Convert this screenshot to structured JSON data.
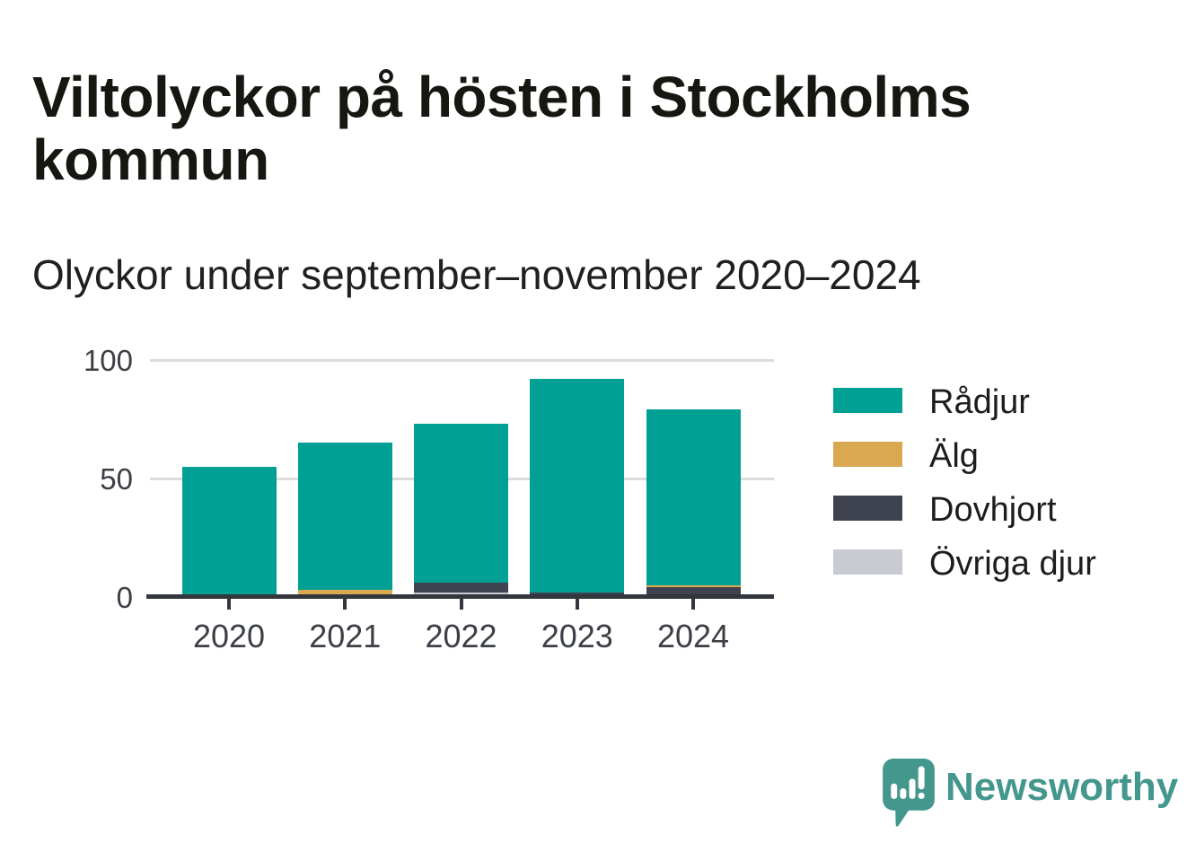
{
  "page": {
    "title": "Viltolyckor på hösten i Stockholms kommun",
    "subtitle": "Olyckor under september–november 2020–2024",
    "background_color": "#ffffff"
  },
  "chart_data": {
    "type": "bar",
    "stacked": true,
    "title": "Viltolyckor på hösten i Stockholms kommun",
    "subtitle": "Olyckor under september–november 2020–2024",
    "categories": [
      "2020",
      "2021",
      "2022",
      "2023",
      "2024"
    ],
    "series": [
      {
        "name": "Rådjur",
        "color": "#00a095",
        "values": [
          54,
          62,
          67,
          90,
          74
        ]
      },
      {
        "name": "Älg",
        "color": "#d9a850",
        "values": [
          0,
          3,
          0,
          0,
          1
        ]
      },
      {
        "name": "Dovhjort",
        "color": "#3f424f",
        "values": [
          1,
          0,
          4,
          2,
          4
        ]
      },
      {
        "name": "Övriga djur",
        "color": "#c9cbd3",
        "values": [
          0,
          0,
          2,
          0,
          0
        ]
      }
    ],
    "totals": [
      55,
      65,
      73,
      92,
      79
    ],
    "xlabel": "",
    "ylabel": "",
    "ylim": [
      0,
      100
    ],
    "yticks": [
      0,
      50,
      100
    ],
    "grid": "horizontal",
    "legend_position": "right",
    "stack_order": "reverse-legend-order (Övriga djur bottom, Rådjur top)",
    "axis_color": "#33373d",
    "gridline_color": "#dcdcdc"
  },
  "branding": {
    "logo_text": "Newsworthy",
    "logo_color": "#43978d",
    "logo_icon": "bar-chart-speech-bubble"
  }
}
